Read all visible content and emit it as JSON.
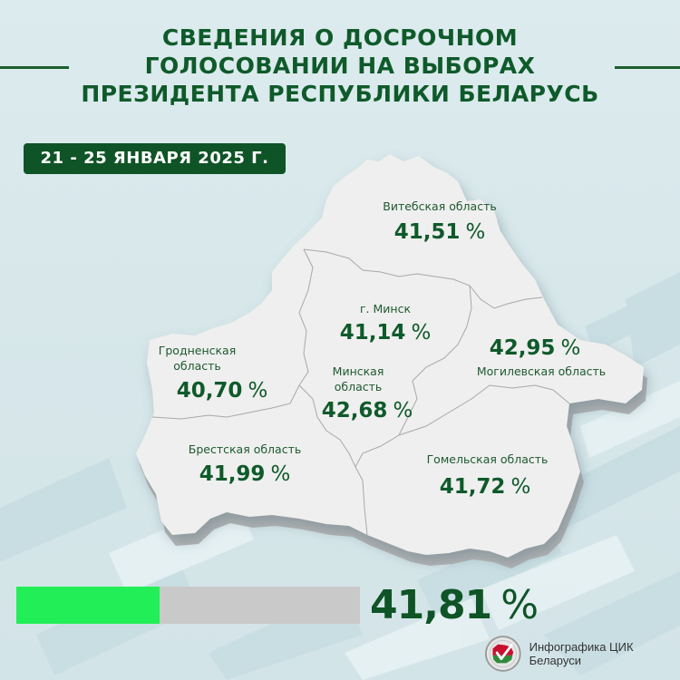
{
  "header": {
    "title_lines": [
      "СВЕДЕНИЯ О ДОСРОЧНОМ",
      "ГОЛОСОВАНИИ НА ВЫБОРАХ",
      "ПРЕЗИДЕНТА РЕСПУБЛИКИ БЕЛАРУСЬ"
    ],
    "date_range": "21 - 25 ЯНВАРЯ 2025 Г."
  },
  "map": {
    "regions": [
      {
        "id": "vitebsk",
        "label_lines": [
          "Витебская область"
        ],
        "value": "41,51",
        "unit": "%"
      },
      {
        "id": "minsk-city",
        "label_lines": [
          "г. Минск"
        ],
        "value": "41,14",
        "unit": "%"
      },
      {
        "id": "grodno",
        "label_lines": [
          "Гродненская",
          "область"
        ],
        "value": "40,70",
        "unit": "%"
      },
      {
        "id": "minsk-region",
        "label_lines": [
          "Минская",
          "область"
        ],
        "value": "42,68",
        "unit": "%"
      },
      {
        "id": "mogilev",
        "label_lines": [
          "Могилевская область"
        ],
        "value": "42,95",
        "unit": "%"
      },
      {
        "id": "brest",
        "label_lines": [
          "Брестская область"
        ],
        "value": "41,99",
        "unit": "%"
      },
      {
        "id": "gomel",
        "label_lines": [
          "Гомельская область"
        ],
        "value": "41,72",
        "unit": "%"
      }
    ]
  },
  "total": {
    "value": "41,81",
    "unit": "%",
    "progress_percent": 41.81
  },
  "footer": {
    "logo_icon": "cec-belarus-logo-icon",
    "credit": "Инфографика ЦИК Беларуси"
  },
  "colors": {
    "primary_green": "#0f5426",
    "text_green": "#0f5a2a",
    "progress_fill": "#22ef58",
    "progress_track": "#c9c9c9",
    "map_fill": "#efefef",
    "background": "#d8e8eb"
  },
  "chart_data": {
    "type": "table",
    "title": "Сведения о досрочном голосовании на выборах Президента Республики Беларусь, 21 - 25 января 2025 г.",
    "categories": [
      "Витебская область",
      "г. Минск",
      "Гродненская область",
      "Минская область",
      "Могилевская область",
      "Брестская область",
      "Гомельская область"
    ],
    "values": [
      41.51,
      41.14,
      40.7,
      42.68,
      42.95,
      41.99,
      41.72
    ],
    "unit": "%",
    "total": 41.81
  }
}
